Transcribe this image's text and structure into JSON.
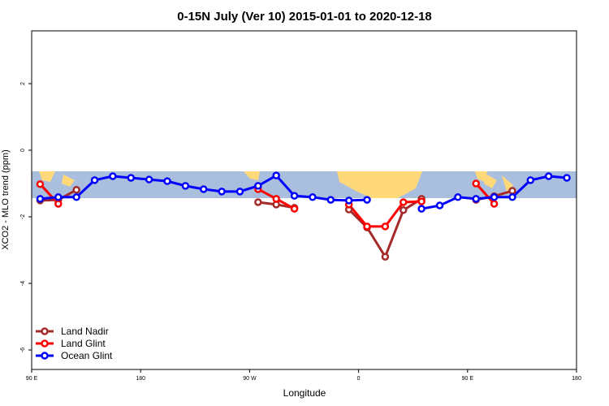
{
  "chart_data": {
    "type": "line",
    "title": "0-15N July (Ver 10)   2015-01-01 to 2020-12-18",
    "x_label": "Longitude",
    "y_label": "XCO2 - MLO trend (ppm)",
    "x": [
      97,
      112,
      127,
      142,
      157,
      172,
      187,
      202,
      217,
      232,
      247,
      262,
      277,
      292,
      307,
      322,
      337,
      352,
      367,
      382,
      397,
      412,
      427,
      442,
      457,
      472,
      487,
      502,
      517,
      532
    ],
    "xlim": [
      90,
      540
    ],
    "xticks": [
      {
        "value": 90,
        "label": "90 E"
      },
      {
        "value": 180,
        "label": "180"
      },
      {
        "value": 270,
        "label": "90 W"
      },
      {
        "value": 360,
        "label": "0"
      },
      {
        "value": 450,
        "label": "90 E"
      },
      {
        "value": 540,
        "label": "180"
      }
    ],
    "ylim": [
      -6.585,
      3.585
    ],
    "yticks": [
      2,
      0,
      -2,
      -4,
      -6
    ],
    "legend": "bottom-left",
    "series": [
      {
        "name": "Land Nadir",
        "color": "#a52a2a",
        "values": [
          -1.51,
          -1.49,
          -1.19,
          null,
          null,
          null,
          null,
          null,
          null,
          null,
          null,
          null,
          -1.56,
          -1.63,
          -1.73,
          null,
          null,
          -1.78,
          -2.32,
          -3.2,
          -1.8,
          -1.46,
          null,
          null,
          -1.49,
          -1.38,
          -1.22,
          null,
          null,
          null
        ]
      },
      {
        "name": "Land Glint",
        "color": "#ff0000",
        "values": [
          -1.02,
          -1.61,
          null,
          null,
          null,
          null,
          null,
          null,
          null,
          null,
          null,
          null,
          -1.17,
          -1.46,
          -1.76,
          null,
          null,
          -1.63,
          -2.29,
          -2.29,
          -1.56,
          -1.54,
          null,
          null,
          -1.0,
          -1.61,
          null,
          null,
          null,
          null
        ]
      },
      {
        "name": "Ocean Glint",
        "color": "#0000ff",
        "values": [
          -1.46,
          -1.41,
          -1.41,
          -0.9,
          -0.78,
          -0.83,
          -0.88,
          -0.93,
          -1.07,
          -1.17,
          -1.24,
          -1.24,
          -1.07,
          -0.76,
          -1.37,
          -1.41,
          -1.49,
          -1.51,
          -1.49,
          null,
          null,
          -1.76,
          -1.66,
          -1.41,
          -1.46,
          -1.41,
          -1.41,
          -0.9,
          -0.78,
          -0.83
        ]
      }
    ]
  }
}
